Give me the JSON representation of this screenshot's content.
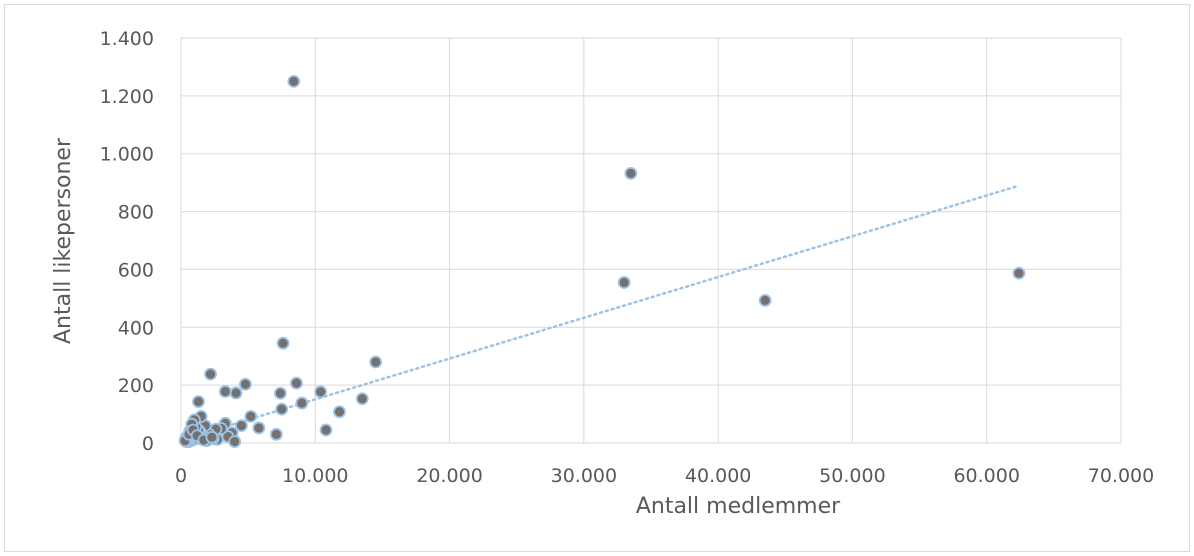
{
  "chart_data": {
    "type": "scatter",
    "title": "",
    "xlabel": "Antall medlemmer",
    "ylabel": "Antall likepersoner",
    "xlim": [
      0,
      70000
    ],
    "ylim": [
      0,
      1400
    ],
    "x_ticks": [
      0,
      10000,
      20000,
      30000,
      40000,
      50000,
      60000,
      70000
    ],
    "y_ticks": [
      0,
      200,
      400,
      600,
      800,
      1000,
      1200,
      1400
    ],
    "x_tick_labels": [
      "0",
      "10.000",
      "20.000",
      "30.000",
      "40.000",
      "50.000",
      "60.000",
      "70.000"
    ],
    "y_tick_labels": [
      "0",
      "200",
      "400",
      "600",
      "800",
      "1.000",
      "1.200",
      "1.400"
    ],
    "grid": true,
    "legend": "none",
    "colors": {
      "marker_fill": "#767171",
      "marker_stroke": "#9dc3e6",
      "trend": "#9dc3e6",
      "grid": "#d9d9d9",
      "text": "#595959"
    },
    "trendline": {
      "type": "linear",
      "style": "dotted",
      "x": [
        0,
        62300
      ],
      "y": [
        10,
        888
      ]
    },
    "series": [
      {
        "x": [
          8400,
          33500,
          33000,
          43500,
          62400,
          7600,
          14500,
          2200,
          10400,
          13500,
          8600,
          4800,
          3300,
          4100,
          1300,
          11800,
          9000,
          7400,
          7500,
          5200,
          4500,
          10800,
          7100,
          5800,
          3800,
          3500,
          3300,
          3000,
          2700,
          2600,
          2400,
          2100,
          1900,
          1800,
          1600,
          1500,
          1400,
          1300,
          1200,
          1100,
          1000,
          950,
          900,
          850,
          800,
          750,
          700,
          650,
          600,
          550,
          500,
          450,
          400,
          350,
          300,
          600,
          900,
          1200,
          1700,
          2300,
          4000
        ],
        "y": [
          1250,
          932,
          555,
          493,
          587,
          345,
          280,
          238,
          177,
          153,
          207,
          203,
          178,
          173,
          143,
          108,
          138,
          172,
          117,
          92,
          60,
          45,
          30,
          52,
          35,
          22,
          68,
          50,
          12,
          48,
          15,
          30,
          8,
          60,
          25,
          92,
          40,
          45,
          15,
          55,
          80,
          20,
          35,
          10,
          65,
          30,
          15,
          40,
          5,
          25,
          10,
          20,
          5,
          15,
          8,
          30,
          45,
          25,
          10,
          20,
          5
        ]
      }
    ]
  }
}
